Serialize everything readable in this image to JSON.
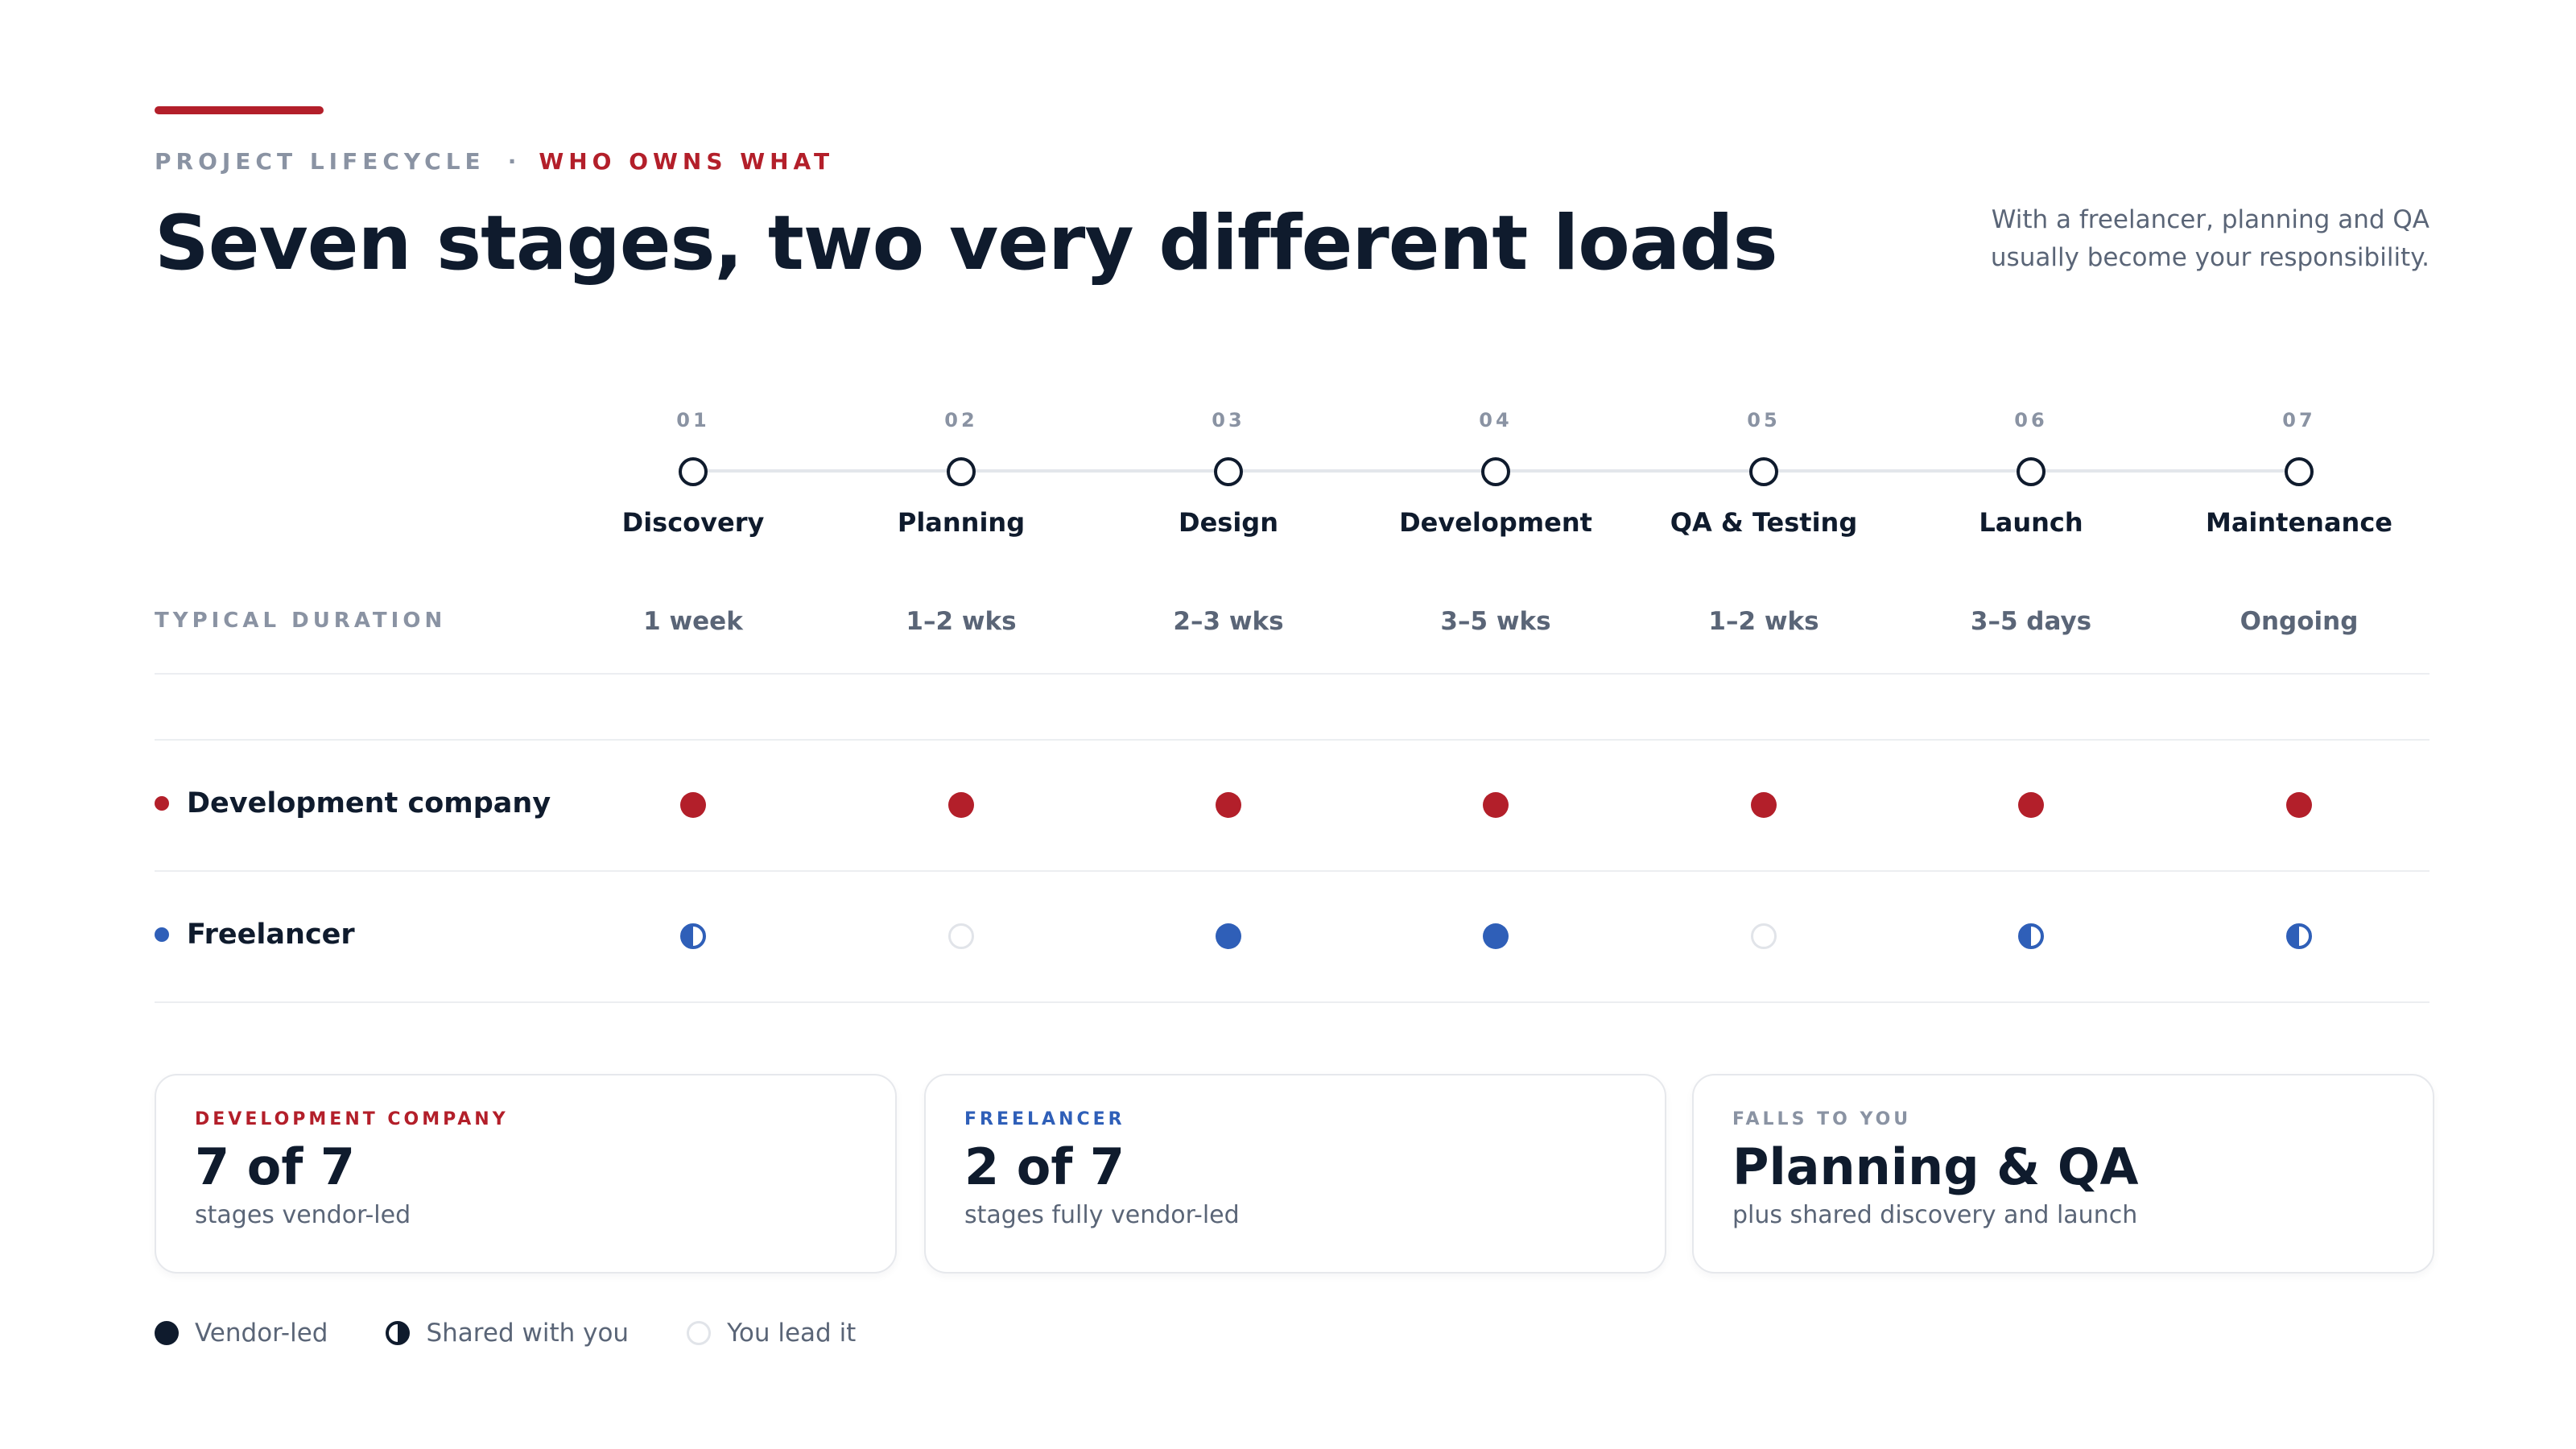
{
  "header": {
    "eyebrow_left": "PROJECT LIFECYCLE",
    "eyebrow_sep": "·",
    "eyebrow_right": "WHO OWNS WHAT",
    "title": "Seven stages, two very different loads",
    "subtitle": "With a freelancer, planning and QA usually become your responsibility."
  },
  "colors": {
    "accent_red": "#b31f2a",
    "freelancer_blue": "#2f5fb8",
    "ink": "#0f1b2d",
    "muted": "#8a93a3"
  },
  "duration_label": "TYPICAL DURATION",
  "stages": [
    {
      "num": "01",
      "name": "Discovery",
      "duration": "1 week"
    },
    {
      "num": "02",
      "name": "Planning",
      "duration": "1–2 wks"
    },
    {
      "num": "03",
      "name": "Design",
      "duration": "2–3 wks"
    },
    {
      "num": "04",
      "name": "Development",
      "duration": "3–5 wks"
    },
    {
      "num": "05",
      "name": "QA & Testing",
      "duration": "1–2 wks"
    },
    {
      "num": "06",
      "name": "Launch",
      "duration": "3–5 days"
    },
    {
      "num": "07",
      "name": "Maintenance",
      "duration": "Ongoing"
    }
  ],
  "rows": [
    {
      "label": "Development company",
      "marks": [
        "vendor",
        "vendor",
        "vendor",
        "vendor",
        "vendor",
        "vendor",
        "vendor"
      ]
    },
    {
      "label": "Freelancer",
      "marks": [
        "shared",
        "you",
        "vendor",
        "vendor",
        "you",
        "shared",
        "shared"
      ]
    }
  ],
  "cards": [
    {
      "eyebrow": "DEVELOPMENT COMPANY",
      "value": "7 of 7",
      "desc": "stages vendor-led"
    },
    {
      "eyebrow": "FREELANCER",
      "value": "2 of 7",
      "desc": "stages fully vendor-led"
    },
    {
      "eyebrow": "FALLS TO YOU",
      "value": "Planning & QA",
      "desc": "plus shared discovery and launch"
    }
  ],
  "legend": [
    {
      "label": "Vendor-led",
      "icon": "full-circle-icon"
    },
    {
      "label": "Shared with you",
      "icon": "half-circle-icon"
    },
    {
      "label": "You lead it",
      "icon": "empty-circle-icon"
    }
  ]
}
